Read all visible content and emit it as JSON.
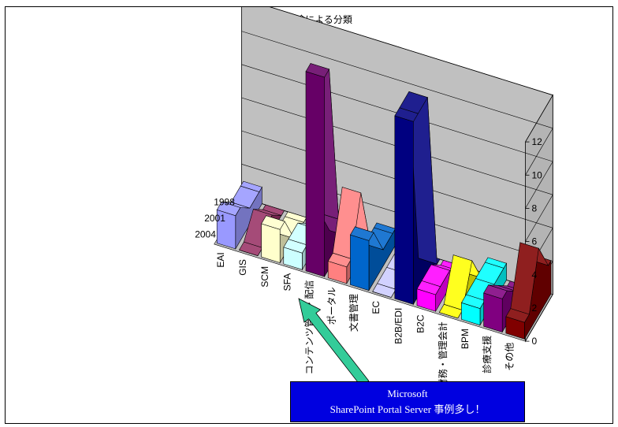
{
  "chart_data": {
    "type": "bar",
    "style": "3d-area",
    "title": "利用用途による分類",
    "categories": [
      "EAI",
      "GIS",
      "SCM",
      "SFA",
      "コンテンツ管理・配信",
      "ポータル",
      "文書管理",
      "EC",
      "B2B/EDI",
      "B2C",
      "財務・管理会計",
      "BPM",
      "診療支援",
      "その他"
    ],
    "series_labels": [
      "1998",
      "2001",
      "2004"
    ],
    "colors": [
      "#9999ff",
      "#993366",
      "#ffffcc",
      "#ccffff",
      "#660066",
      "#ff8080",
      "#0066cc",
      "#ccccff",
      "#000080",
      "#ff00ff",
      "#ffff00",
      "#00ffff",
      "#800080",
      "#800000"
    ],
    "values_by_year": [
      [
        1,
        0,
        0,
        0,
        0,
        0,
        1,
        0,
        0,
        0,
        0,
        1,
        0,
        2
      ],
      [
        1,
        1,
        0,
        1,
        2,
        4,
        1,
        0,
        11,
        1,
        2,
        1,
        1,
        4
      ],
      [
        2,
        0,
        2,
        1,
        12,
        1,
        3,
        0,
        11,
        1,
        0,
        1,
        2,
        1
      ]
    ],
    "zlim": [
      0,
      12
    ],
    "z_ticks": [
      "0",
      "2",
      "4",
      "6",
      "8",
      "10",
      "12"
    ],
    "grid": true
  },
  "callout": {
    "line1": "Microsoft",
    "line2": "SharePoint Portal Server 事例多し！",
    "box_color": "#0000e0",
    "arrow_color": "#33cc99"
  }
}
